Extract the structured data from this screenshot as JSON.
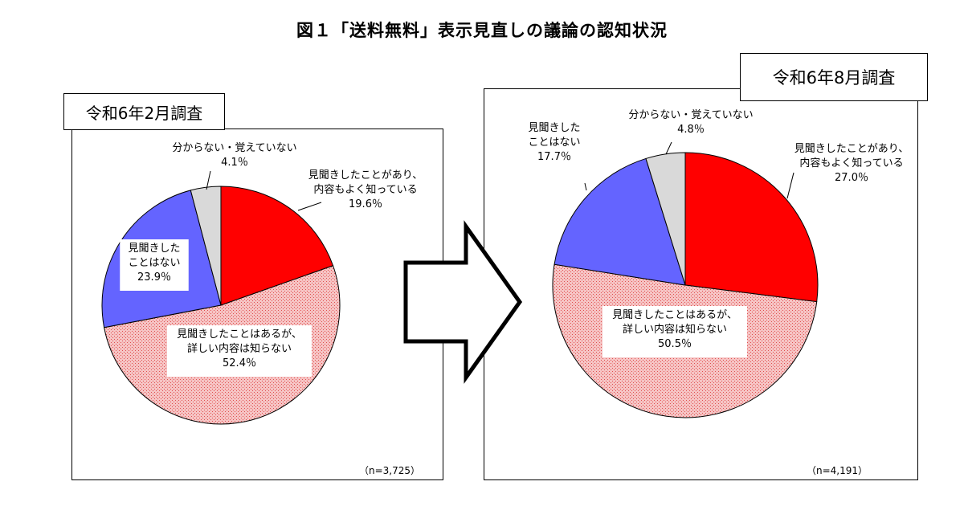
{
  "title": "図１「送料無料」表示見直しの議論の認知状況",
  "colors": {
    "known_detail": "#ff0000",
    "known_no_detail": "#f6c4c4",
    "known_no_detail_pattern": "#e05050",
    "not_heard": "#6464ff",
    "unknown": "#d9d9d9"
  },
  "arrow": {
    "shape": "right-arrow-outline"
  },
  "chart_data": [
    {
      "type": "pie",
      "title": "令和6年2月調査",
      "sample": "（n=3,725）",
      "slices": [
        {
          "key": "known_detail",
          "label": [
            "見聞きしたことがあり、",
            "内容もよく知っている"
          ],
          "value": 19.6,
          "value_label": "19.6％"
        },
        {
          "key": "known_no_detail",
          "label": [
            "見聞きしたことはあるが、",
            "詳しい内容は知らない"
          ],
          "value": 52.4,
          "value_label": "52.4％"
        },
        {
          "key": "not_heard",
          "label": [
            "見聞きした",
            "ことはない"
          ],
          "value": 23.9,
          "value_label": "23.9％"
        },
        {
          "key": "unknown",
          "label": [
            "分からない・覚えていない"
          ],
          "value": 4.1,
          "value_label": "4.1％"
        }
      ]
    },
    {
      "type": "pie",
      "title": "令和6年8月調査",
      "sample": "（n=4,191）",
      "slices": [
        {
          "key": "known_detail",
          "label": [
            "見聞きしたことがあり、",
            "内容もよく知っている"
          ],
          "value": 27.0,
          "value_label": "27.0％"
        },
        {
          "key": "known_no_detail",
          "label": [
            "見聞きしたことはあるが、",
            "詳しい内容は知らない"
          ],
          "value": 50.5,
          "value_label": "50.5％"
        },
        {
          "key": "not_heard",
          "label": [
            "見聞きした",
            "ことはない"
          ],
          "value": 17.7,
          "value_label": "17.7％"
        },
        {
          "key": "unknown",
          "label": [
            "分からない・覚えていない"
          ],
          "value": 4.8,
          "value_label": "4.8％"
        }
      ]
    }
  ]
}
